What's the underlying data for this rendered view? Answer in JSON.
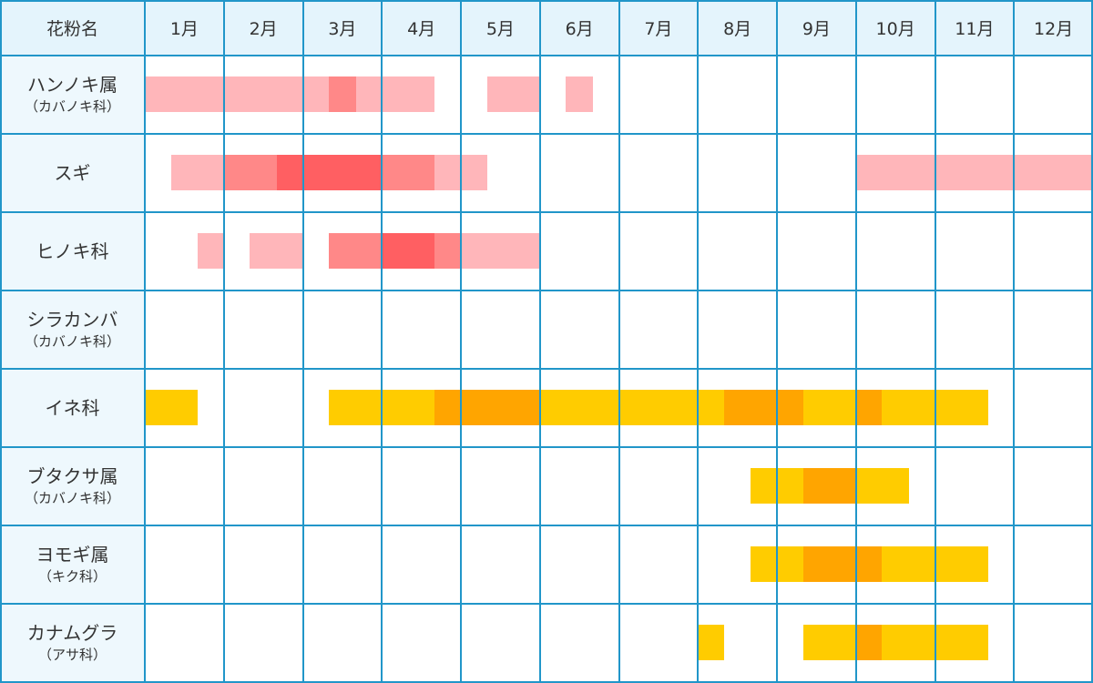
{
  "table": {
    "header_label": "花粉名",
    "months": [
      "1月",
      "2月",
      "3月",
      "4月",
      "5月",
      "6月",
      "7月",
      "8月",
      "9月",
      "10月",
      "11月",
      "12月"
    ],
    "rows": [
      {
        "name": "ハンノキ属",
        "family": "（カバノキ科）"
      },
      {
        "name": "スギ",
        "family": ""
      },
      {
        "name": "ヒノキ科",
        "family": ""
      },
      {
        "name": "シラカンバ",
        "family": "（カバノキ科）"
      },
      {
        "name": "イネ科",
        "family": ""
      },
      {
        "name": "ブタクサ属",
        "family": "（カバノキ科）"
      },
      {
        "name": "ヨモギ属",
        "family": "（キク科）"
      },
      {
        "name": "カナムグラ",
        "family": "（アサ科）"
      }
    ]
  },
  "colors": {
    "grid": "#2196c9",
    "header_bg": "#e4f4fc",
    "label_bg": "#eef8fd",
    "tree_light": "#ffb6ba",
    "tree_mid": "#ff8888",
    "tree_peak": "#ff5f62",
    "grass_light": "#ffcc00",
    "grass_peak": "#ffa500"
  },
  "chart_data": {
    "type": "table",
    "x_unit": "month (1-12), segment start/end as fractional month position",
    "levels": [
      "light",
      "mid",
      "peak"
    ],
    "series": [
      {
        "row": 0,
        "segments": [
          {
            "start": 1.0,
            "end": 3.33,
            "level": "light"
          },
          {
            "start": 3.33,
            "end": 3.67,
            "level": "mid"
          },
          {
            "start": 3.67,
            "end": 4.67,
            "level": "light"
          },
          {
            "start": 5.33,
            "end": 6.0,
            "level": "light"
          },
          {
            "start": 6.33,
            "end": 6.67,
            "level": "light"
          }
        ]
      },
      {
        "row": 1,
        "segments": [
          {
            "start": 1.33,
            "end": 2.0,
            "level": "light"
          },
          {
            "start": 2.0,
            "end": 2.67,
            "level": "mid"
          },
          {
            "start": 2.67,
            "end": 4.0,
            "level": "peak"
          },
          {
            "start": 4.0,
            "end": 4.67,
            "level": "mid"
          },
          {
            "start": 4.67,
            "end": 5.33,
            "level": "light"
          },
          {
            "start": 10.0,
            "end": 13.0,
            "level": "light"
          }
        ]
      },
      {
        "row": 2,
        "segments": [
          {
            "start": 1.67,
            "end": 2.0,
            "level": "light"
          },
          {
            "start": 2.33,
            "end": 3.0,
            "level": "light"
          },
          {
            "start": 3.33,
            "end": 4.0,
            "level": "mid"
          },
          {
            "start": 4.0,
            "end": 4.67,
            "level": "peak"
          },
          {
            "start": 4.67,
            "end": 5.0,
            "level": "mid"
          },
          {
            "start": 5.0,
            "end": 6.0,
            "level": "light"
          }
        ]
      },
      {
        "row": 3,
        "segments": []
      },
      {
        "row": 4,
        "segments": [
          {
            "start": 1.0,
            "end": 1.67,
            "level": "light"
          },
          {
            "start": 3.33,
            "end": 4.67,
            "level": "light"
          },
          {
            "start": 4.67,
            "end": 6.0,
            "level": "peak"
          },
          {
            "start": 6.0,
            "end": 8.33,
            "level": "light"
          },
          {
            "start": 8.33,
            "end": 9.33,
            "level": "peak"
          },
          {
            "start": 9.33,
            "end": 10.0,
            "level": "light"
          },
          {
            "start": 10.0,
            "end": 10.33,
            "level": "peak"
          },
          {
            "start": 10.33,
            "end": 11.67,
            "level": "light"
          }
        ]
      },
      {
        "row": 5,
        "segments": [
          {
            "start": 8.67,
            "end": 9.33,
            "level": "light"
          },
          {
            "start": 9.33,
            "end": 10.0,
            "level": "peak"
          },
          {
            "start": 10.0,
            "end": 10.67,
            "level": "light"
          }
        ]
      },
      {
        "row": 6,
        "segments": [
          {
            "start": 8.67,
            "end": 9.33,
            "level": "light"
          },
          {
            "start": 9.33,
            "end": 10.33,
            "level": "peak"
          },
          {
            "start": 10.33,
            "end": 11.67,
            "level": "light"
          }
        ]
      },
      {
        "row": 7,
        "segments": [
          {
            "start": 8.0,
            "end": 8.33,
            "level": "light"
          },
          {
            "start": 9.33,
            "end": 10.0,
            "level": "light"
          },
          {
            "start": 10.0,
            "end": 10.33,
            "level": "peak"
          },
          {
            "start": 10.33,
            "end": 11.67,
            "level": "light"
          }
        ]
      }
    ],
    "row_palette": [
      "tree",
      "tree",
      "tree",
      "tree",
      "grass",
      "grass",
      "grass",
      "grass"
    ]
  }
}
